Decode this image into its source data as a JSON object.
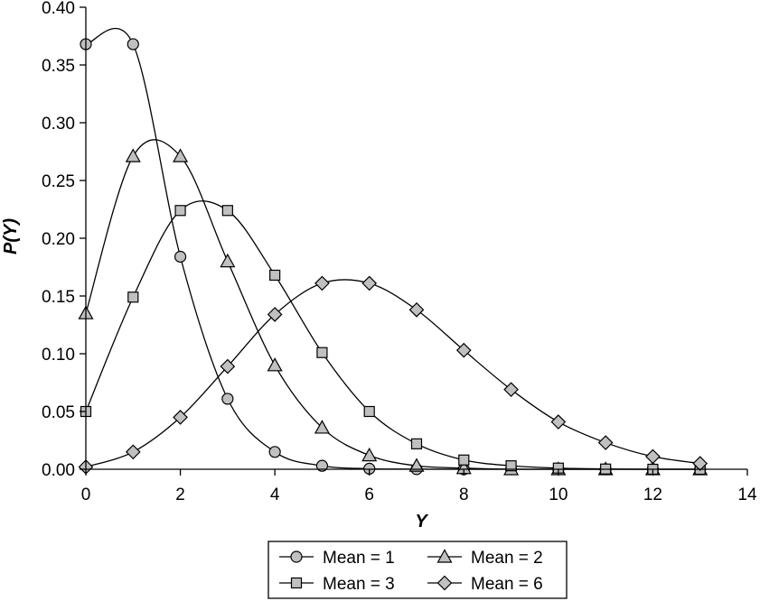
{
  "chart_data": {
    "type": "line",
    "title": "",
    "xlabel": "Y",
    "ylabel": "P(Y)",
    "xlim": [
      0,
      14
    ],
    "ylim": [
      0,
      0.4
    ],
    "xticks": [
      0,
      2,
      4,
      6,
      8,
      10,
      12,
      14
    ],
    "yticks": [
      0,
      0.05,
      0.1,
      0.15,
      0.2,
      0.25,
      0.3,
      0.35,
      0.4
    ],
    "xtick_labels": [
      "0",
      "2",
      "4",
      "6",
      "8",
      "10",
      "12",
      "14"
    ],
    "ytick_labels": [
      "0.00",
      "0.05",
      "0.10",
      "0.15",
      "0.20",
      "0.25",
      "0.30",
      "0.35",
      "0.40"
    ],
    "grid": false,
    "legend_position": "bottom",
    "x": [
      0,
      1,
      2,
      3,
      4,
      5,
      6,
      7,
      8,
      9,
      10,
      11,
      12,
      13
    ],
    "series": [
      {
        "name": "Mean = 1",
        "marker": "circle",
        "values": [
          0.368,
          0.368,
          0.184,
          0.061,
          0.015,
          0.003,
          0.0005,
          0.0001,
          0,
          0,
          0,
          0,
          0,
          0
        ]
      },
      {
        "name": "Mean = 2",
        "marker": "triangle",
        "values": [
          0.135,
          0.271,
          0.271,
          0.18,
          0.09,
          0.036,
          0.012,
          0.003,
          0.001,
          0,
          0,
          0,
          0,
          0
        ]
      },
      {
        "name": "Mean = 3",
        "marker": "square",
        "values": [
          0.05,
          0.149,
          0.224,
          0.224,
          0.168,
          0.101,
          0.05,
          0.022,
          0.008,
          0.003,
          0.001,
          0.0002,
          0,
          0
        ]
      },
      {
        "name": "Mean = 6",
        "marker": "diamond",
        "values": [
          0.002,
          0.015,
          0.045,
          0.089,
          0.134,
          0.161,
          0.161,
          0.138,
          0.103,
          0.069,
          0.041,
          0.023,
          0.011,
          0.005
        ]
      }
    ]
  },
  "colors": {
    "marker_fill": "#c0c0c0",
    "stroke": "#000000"
  }
}
